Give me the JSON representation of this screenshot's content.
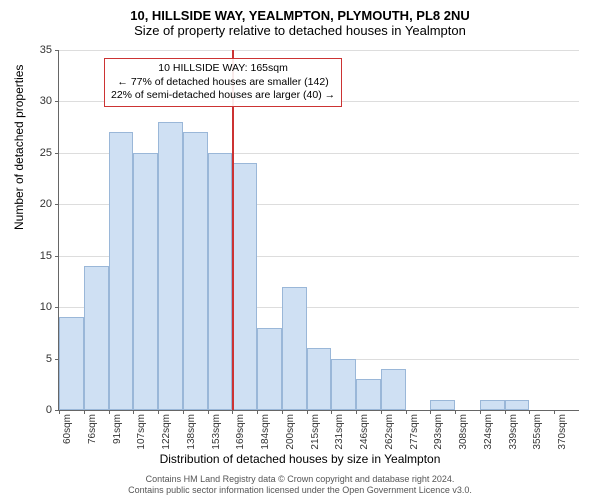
{
  "title": "10, HILLSIDE WAY, YEALMPTON, PLYMOUTH, PL8 2NU",
  "subtitle": "Size of property relative to detached houses in Yealmpton",
  "ylabel": "Number of detached properties",
  "xlabel": "Distribution of detached houses by size in Yealmpton",
  "chart": {
    "type": "histogram",
    "ylim": [
      0,
      35
    ],
    "ytick_step": 5,
    "yticks": [
      0,
      5,
      10,
      15,
      20,
      25,
      30,
      35
    ],
    "categories": [
      "60sqm",
      "76sqm",
      "91sqm",
      "107sqm",
      "122sqm",
      "138sqm",
      "153sqm",
      "169sqm",
      "184sqm",
      "200sqm",
      "215sqm",
      "231sqm",
      "246sqm",
      "262sqm",
      "277sqm",
      "293sqm",
      "308sqm",
      "324sqm",
      "339sqm",
      "355sqm",
      "370sqm"
    ],
    "values": [
      9,
      14,
      27,
      25,
      28,
      27,
      25,
      24,
      8,
      12,
      6,
      5,
      3,
      4,
      0,
      1,
      0,
      1,
      1,
      0,
      0
    ],
    "bar_color": "#cfe0f3",
    "bar_border_color": "#9ab7d8",
    "background_color": "#ffffff",
    "grid_color": "#dddddd",
    "axis_color": "#666666",
    "label_fontsize": 12,
    "tick_fontsize": 11,
    "title_fontsize": 13,
    "marker": {
      "position_category_index": 7,
      "color": "#cc3333",
      "width": 1.5
    },
    "annotation": {
      "lines": [
        "10 HILLSIDE WAY: 165sqm",
        "← 77% of detached houses are smaller (142)",
        "22% of semi-detached houses are larger (40) →"
      ],
      "border_color": "#cc3333",
      "background": "rgba(255,255,255,0.9)",
      "fontsize": 10.5
    }
  },
  "footer": {
    "line1": "Contains HM Land Registry data © Crown copyright and database right 2024.",
    "line2": "Contains public sector information licensed under the Open Government Licence v3.0."
  }
}
